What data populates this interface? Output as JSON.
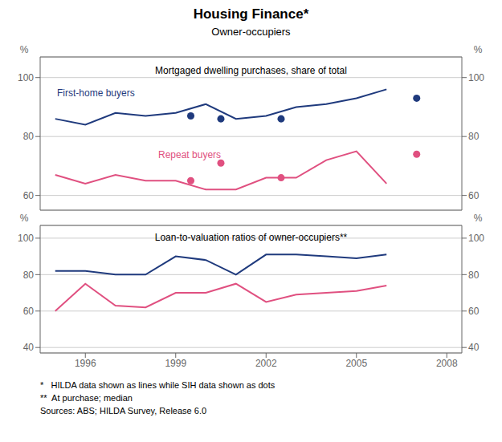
{
  "title": "Housing Finance*",
  "subtitle": "Owner-occupiers",
  "footnotes": [
    "*   HILDA data shown as lines while SIH data shown as dots",
    "**  At purchase; median",
    "Sources: ABS; HILDA Survey, Release 6.0"
  ],
  "chart_data": [
    {
      "type": "line",
      "title": "Mortgaged dwelling purchases, share of total",
      "ylabel": "%",
      "y2label": "%",
      "xlim": [
        1994.5,
        2008.5
      ],
      "ylim": [
        55,
        107
      ],
      "yticks": [
        60,
        80,
        100
      ],
      "y2lim": [
        55,
        107
      ],
      "y2ticks": [
        60,
        80,
        100
      ],
      "grid": true,
      "tick_labels": "y",
      "series": [
        {
          "name": "First-home buyers",
          "type": "line",
          "color": "#1F3A7D",
          "x": [
            1995,
            1996,
            1997,
            1998,
            1999,
            2000,
            2001,
            2002,
            2003,
            2004,
            2005,
            2006
          ],
          "values": [
            86,
            84,
            88,
            87,
            88,
            91,
            86,
            87,
            90,
            91,
            93,
            96
          ]
        },
        {
          "name": "Repeat buyers",
          "type": "line",
          "color": "#E05080",
          "x": [
            1995,
            1996,
            1997,
            1998,
            1999,
            2000,
            2001,
            2002,
            2003,
            2004,
            2005,
            2006
          ],
          "values": [
            67,
            64,
            67,
            65,
            65,
            62,
            62,
            66,
            66,
            72,
            75,
            64
          ]
        },
        {
          "type": "scatter",
          "color": "#1F3A7D",
          "x": [
            1999.5,
            2000.5,
            2002.5,
            2007
          ],
          "values": [
            87,
            86,
            86,
            93
          ]
        },
        {
          "type": "scatter",
          "color": "#E05080",
          "x": [
            1999.5,
            2000.5,
            2002.5,
            2007
          ],
          "values": [
            65,
            71,
            66,
            74
          ]
        }
      ]
    },
    {
      "type": "line",
      "title": "Loan-to-valuation ratios of owner-occupiers**",
      "ylabel": "%",
      "y2label": "%",
      "xlim": [
        1994.5,
        2008.5
      ],
      "xticks": [
        1996,
        1999,
        2002,
        2005,
        2008
      ],
      "ylim": [
        37,
        107
      ],
      "yticks": [
        40,
        60,
        80,
        100
      ],
      "y2lim": [
        37,
        107
      ],
      "y2ticks": [
        40,
        60,
        80,
        100
      ],
      "grid": true,
      "series": [
        {
          "type": "line",
          "color": "#1F3A7D",
          "x": [
            1995,
            1996,
            1997,
            1998,
            1999,
            2000,
            2001,
            2002,
            2003,
            2004,
            2005,
            2006
          ],
          "values": [
            82,
            82,
            80,
            80,
            90,
            88,
            80,
            91,
            91,
            90,
            89,
            91
          ]
        },
        {
          "type": "line",
          "color": "#E05080",
          "x": [
            1995,
            1996,
            1997,
            1998,
            1999,
            2000,
            2001,
            2002,
            2003,
            2004,
            2005,
            2006
          ],
          "values": [
            60,
            75,
            63,
            62,
            70,
            70,
            75,
            65,
            69,
            70,
            71,
            74
          ]
        }
      ]
    }
  ]
}
